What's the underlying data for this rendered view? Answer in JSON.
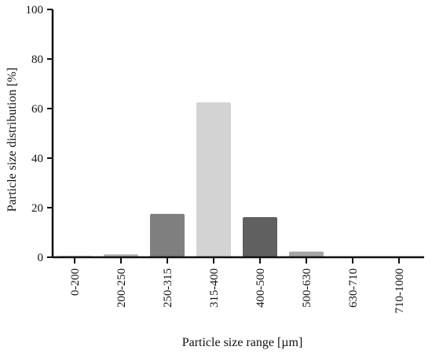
{
  "chart_data": {
    "type": "bar",
    "categories": [
      "0-200",
      "200-250",
      "250-315",
      "315-400",
      "400-500",
      "500-630",
      "630-710",
      "710-1000"
    ],
    "values": [
      0.4,
      1.2,
      17.5,
      62.5,
      16.2,
      2.3,
      0.3,
      0
    ],
    "bar_colors": [
      "#111111",
      "#b3b3b3",
      "#7f7f7f",
      "#d3d3d3",
      "#606060",
      "#a6a6a6",
      "#111111",
      "#111111"
    ],
    "xlabel": "Particle size range [µm]",
    "ylabel": "Particle size distribution [%]",
    "ylim": [
      0,
      100
    ],
    "yticks": [
      0,
      20,
      40,
      60,
      80,
      100
    ],
    "grid": false,
    "legend": "none"
  }
}
